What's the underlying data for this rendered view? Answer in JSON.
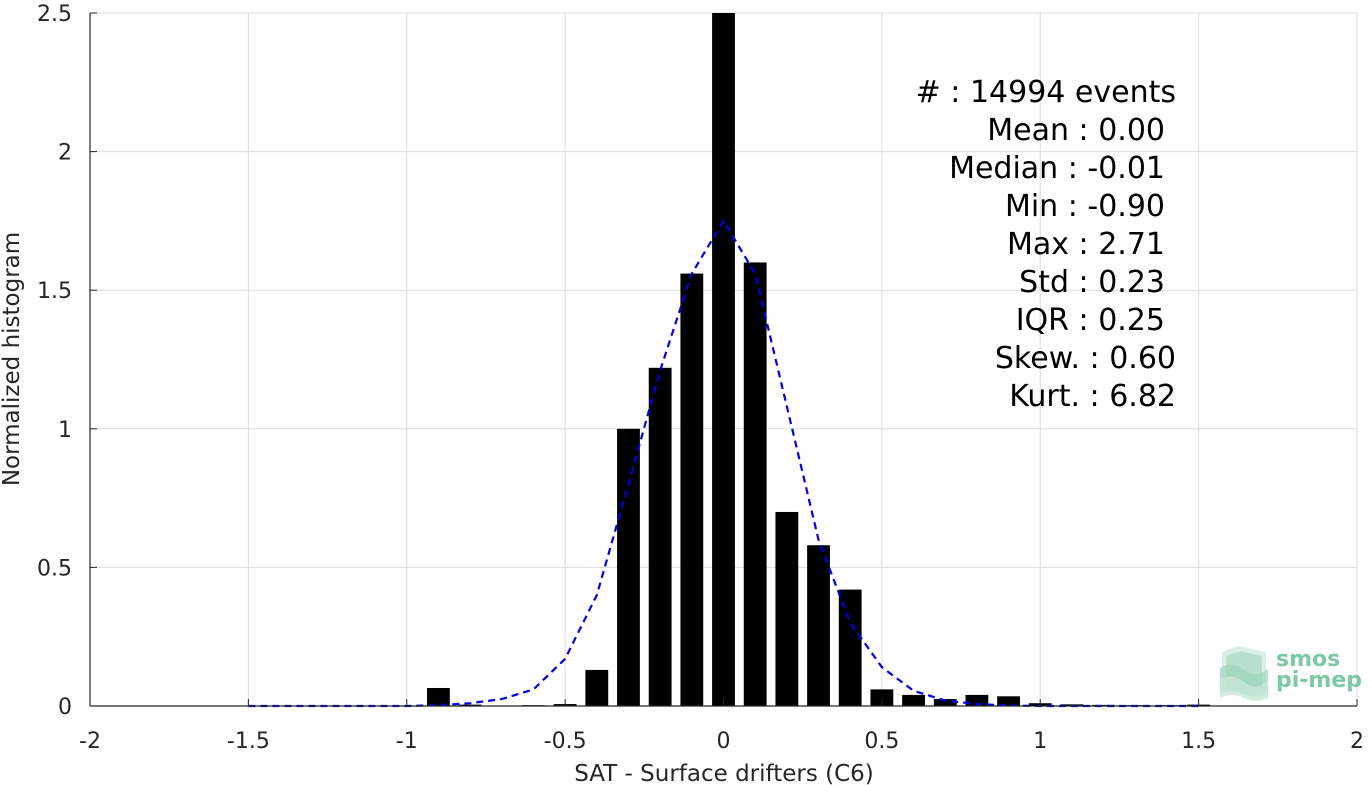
{
  "chart_data": {
    "type": "bar",
    "xlabel": "SAT - Surface drifters (C6)",
    "ylabel": "Normalized histogram",
    "xlim": [
      -2,
      2
    ],
    "ylim": [
      0,
      2.5
    ],
    "grid": true,
    "x_ticks": [
      -2,
      -1.5,
      -1,
      -0.5,
      0,
      0.5,
      1,
      1.5,
      2
    ],
    "x_tick_labels": [
      "-2",
      "-1.5",
      "-1",
      "-0.5",
      "0",
      "0.5",
      "1",
      "1.5",
      "2"
    ],
    "y_ticks": [
      0,
      0.5,
      1,
      1.5,
      2,
      2.5
    ],
    "y_tick_labels": [
      "0",
      "0.5",
      "1",
      "1.5",
      "2",
      "2.5"
    ],
    "bar_color": "#000000",
    "bars": {
      "x": [
        -1.5,
        -1.4,
        -1.3,
        -1.2,
        -1.1,
        -1.0,
        -0.9,
        -0.8,
        -0.7,
        -0.6,
        -0.5,
        -0.4,
        -0.3,
        -0.2,
        -0.1,
        0.0,
        0.1,
        0.2,
        0.3,
        0.4,
        0.5,
        0.6,
        0.7,
        0.8,
        0.9,
        1.0,
        1.1,
        1.2,
        1.3,
        1.4,
        1.5
      ],
      "values": [
        0,
        0,
        0,
        0,
        0,
        0,
        0.065,
        0.005,
        0.002,
        0.003,
        0.007,
        0.13,
        1.0,
        1.22,
        1.56,
        2.5,
        1.6,
        0.7,
        0.58,
        0.42,
        0.06,
        0.04,
        0.025,
        0.04,
        0.035,
        0.01,
        0.006,
        0.004,
        0.003,
        0.003,
        0.005
      ]
    },
    "fit_curve": {
      "style": "dashed",
      "color": "#0000e6",
      "x": [
        -1.5,
        -1.0,
        -0.9,
        -0.8,
        -0.7,
        -0.6,
        -0.5,
        -0.4,
        -0.3,
        -0.2,
        -0.1,
        0.0,
        0.1,
        0.2,
        0.3,
        0.4,
        0.5,
        0.6,
        0.7,
        0.8,
        0.9,
        1.0,
        1.5
      ],
      "y": [
        0,
        0,
        0.003,
        0.01,
        0.025,
        0.06,
        0.17,
        0.4,
        0.8,
        1.21,
        1.56,
        1.75,
        1.56,
        1.08,
        0.6,
        0.3,
        0.14,
        0.055,
        0.02,
        0.007,
        0.002,
        0,
        0
      ]
    },
    "stats": [
      {
        "label": "#  : 14994 events"
      },
      {
        "label": "Mean : 0.00"
      },
      {
        "label": "Median : -0.01"
      },
      {
        "label": "Min : -0.90"
      },
      {
        "label": "Max : 2.71"
      },
      {
        "label": "Std : 0.23"
      },
      {
        "label": "IQR : 0.25"
      },
      {
        "label": "Skew. : 0.60"
      },
      {
        "label": "Kurt. : 6.82"
      }
    ]
  },
  "logo": {
    "line1": "smos",
    "line2": "pi-mep",
    "color": "#7cc9a4"
  }
}
